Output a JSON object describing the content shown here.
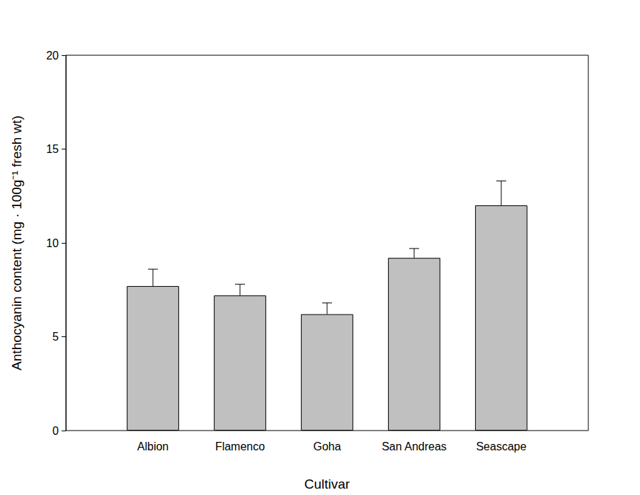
{
  "chart_data": {
    "type": "bar",
    "categories": [
      "Albion",
      "Flamenco",
      "Goha",
      "San Andreas",
      "Seascape"
    ],
    "values": [
      7.7,
      7.2,
      6.2,
      9.2,
      12.0
    ],
    "errors": [
      0.9,
      0.6,
      0.6,
      0.5,
      1.3
    ],
    "color": "#c0c0c0",
    "xlabel": "Cultivar",
    "ylabel": "Anthocyanin content (mg · 100g⁻¹ fresh wt)",
    "ylim": [
      0,
      20
    ],
    "yticks": [
      0,
      5,
      10,
      15,
      20
    ],
    "grid": false
  }
}
